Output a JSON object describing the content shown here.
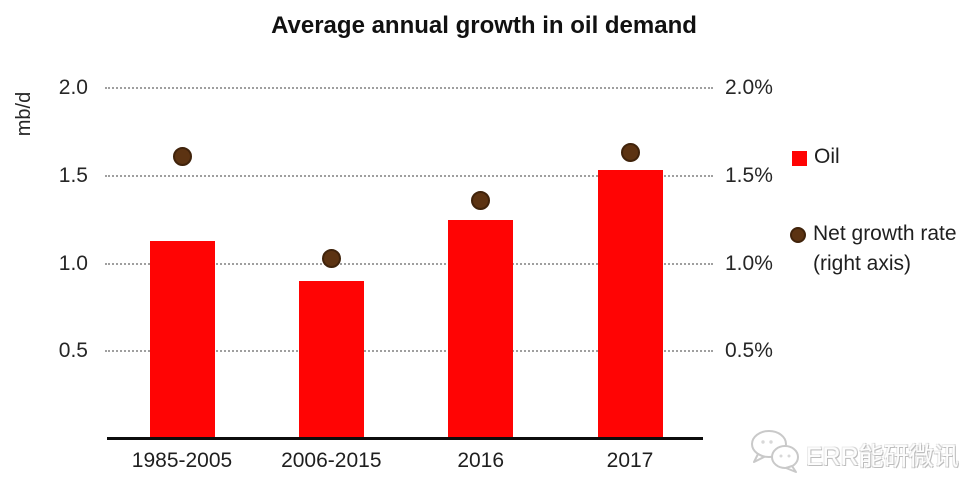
{
  "header": {
    "title": "Average annual growth in oil demand"
  },
  "axes": {
    "left_unit_label": "mb/d"
  },
  "legend": {
    "oil_label": "Oil",
    "net_growth_label": "Net growth rate (right axis)"
  },
  "watermark": {
    "text": "ERR能研微讯",
    "logo": "wechat-style-speech-bubbles"
  },
  "colors": {
    "bar": "#ff0404",
    "dot": "#5c3312",
    "dot_rim": "#40230b",
    "gridline": "#9f9f9f",
    "axis_line": "#0d0d0d",
    "title_text": "#111111",
    "watermark_gray": "#c9c9c9"
  },
  "chart_data": {
    "type": "bar",
    "title": "Average annual growth in oil demand",
    "categories": [
      "1985-2005",
      "2006-2015",
      "2016",
      "2017"
    ],
    "series": [
      {
        "name": "Oil",
        "type": "bar",
        "axis": "left",
        "unit": "mb/d",
        "values": [
          1.13,
          0.9,
          1.25,
          1.53
        ]
      },
      {
        "name": "Net growth rate (right axis)",
        "type": "scatter",
        "axis": "right",
        "unit": "%",
        "values": [
          1.61,
          1.03,
          1.36,
          1.63
        ]
      }
    ],
    "ylabel_left": "mb/d",
    "left_ylim": [
      0,
      2.0
    ],
    "right_ylim": [
      0,
      2.0
    ],
    "ticks": [
      {
        "value": 0.5,
        "left_label": "0.5",
        "right_label": "0.5%"
      },
      {
        "value": 1.0,
        "left_label": "1.0",
        "right_label": "1.0%"
      },
      {
        "value": 1.5,
        "left_label": "1.5",
        "right_label": "1.5%"
      },
      {
        "value": 2.0,
        "left_label": "2.0",
        "right_label": "2.0%"
      }
    ],
    "grid": "horizontal-dotted",
    "legend_position": "right"
  }
}
